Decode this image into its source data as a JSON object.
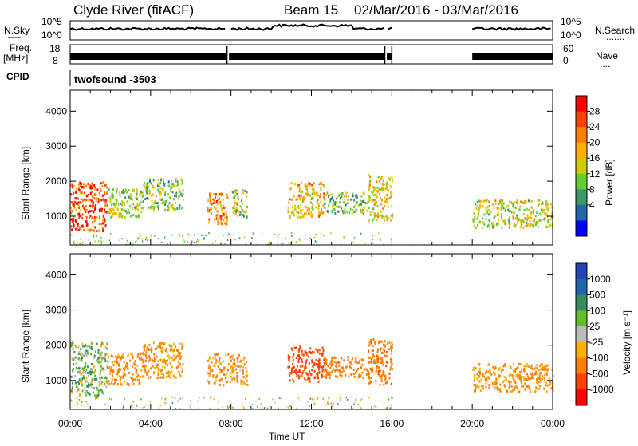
{
  "header": {
    "title": "Clyde River (fitACF)",
    "beam": "Beam 15",
    "date_range": "02/Mar/2016 - 03/Mar/2016"
  },
  "strip_labels": {
    "nsky": "N.Sky",
    "freq_top": "Freq.",
    "freq_unit": "[MHz]",
    "cpid": "CPID",
    "nsearch": "N.Search",
    "nave": "Nave",
    "nsky_top_tick": "10^5",
    "nsky_bottom_tick": "10^0",
    "nsearch_top_tick": "10^5",
    "nsearch_bottom_tick": "10^0",
    "freq_top_tick": "18",
    "freq_bottom_tick": "8",
    "nave_top_tick": "60",
    "nave_bottom_tick": "0",
    "cpid_value": "twofsound -3503"
  },
  "power_colorbar": {
    "label": "Power [dB]",
    "ticks": [
      "28",
      "24",
      "20",
      "16",
      "12",
      "8",
      "4"
    ],
    "colors": [
      "#ff0000",
      "#ff4000",
      "#ff8000",
      "#ffb000",
      "#cccc00",
      "#66cc33",
      "#3a9966",
      "#2266aa",
      "#0000ff"
    ]
  },
  "velocity_colorbar": {
    "label": "Velocity [m s⁻¹]",
    "ticks": [
      "1000",
      "500",
      "100",
      "25",
      "-25",
      "-100",
      "-500",
      "-1000"
    ],
    "colors": [
      "#2244bb",
      "#2266aa",
      "#3a8a60",
      "#66bb33",
      "#bbbbbb",
      "#ffb000",
      "#ff8000",
      "#ff4000",
      "#ff0000"
    ]
  },
  "x_axis": {
    "label": "Time UT",
    "ticks": [
      "00:00",
      "04:00",
      "08:00",
      "12:00",
      "16:00",
      "20:00",
      "00:00"
    ]
  },
  "chart_data": [
    {
      "type": "heatmap",
      "panel": "power",
      "ylabel": "Slant Range [km]",
      "xlabel": "",
      "xlim_hours": [
        0,
        24
      ],
      "ylim_km": [
        180,
        4600
      ],
      "yticks": [
        "1000",
        "2000",
        "3000",
        "4000"
      ],
      "scatter_regions": [
        {
          "t0": 0.0,
          "t1": 1.8,
          "r0": 600,
          "r1": 2000,
          "value_db": 26
        },
        {
          "t0": 1.8,
          "t1": 3.6,
          "r0": 1000,
          "r1": 1800,
          "value_db": 12
        },
        {
          "t0": 3.6,
          "t1": 5.6,
          "r0": 1200,
          "r1": 2100,
          "value_db": 10
        },
        {
          "t0": 6.8,
          "t1": 7.8,
          "r0": 800,
          "r1": 1700,
          "value_db": 22
        },
        {
          "t0": 8.0,
          "t1": 8.8,
          "r0": 1000,
          "r1": 1800,
          "value_db": 12
        },
        {
          "t0": 10.8,
          "t1": 12.6,
          "r0": 1000,
          "r1": 2000,
          "value_db": 18
        },
        {
          "t0": 12.6,
          "t1": 14.8,
          "r0": 1100,
          "r1": 1700,
          "value_db": 10
        },
        {
          "t0": 14.8,
          "t1": 16.0,
          "r0": 900,
          "r1": 2200,
          "value_db": 16
        },
        {
          "t0": 20.0,
          "t1": 24.0,
          "r0": 700,
          "r1": 1500,
          "value_db": 14
        }
      ]
    },
    {
      "type": "heatmap",
      "panel": "velocity",
      "ylabel": "Slant Range [km]",
      "xlabel": "Time UT",
      "xlim_hours": [
        0,
        24
      ],
      "ylim_km": [
        180,
        4600
      ],
      "yticks": [
        "1000",
        "2000",
        "3000",
        "4000"
      ],
      "scatter_regions": [
        {
          "t0": 0.0,
          "t1": 1.8,
          "r0": 600,
          "r1": 2100,
          "value_ms": 60
        },
        {
          "t0": 1.8,
          "t1": 3.6,
          "r0": 900,
          "r1": 1800,
          "value_ms": -200
        },
        {
          "t0": 3.6,
          "t1": 5.6,
          "r0": 1100,
          "r1": 2100,
          "value_ms": -150
        },
        {
          "t0": 6.8,
          "t1": 8.8,
          "r0": 900,
          "r1": 1800,
          "value_ms": -120
        },
        {
          "t0": 10.8,
          "t1": 12.6,
          "r0": 1000,
          "r1": 2000,
          "value_ms": -600
        },
        {
          "t0": 12.6,
          "t1": 14.8,
          "r0": 1100,
          "r1": 1700,
          "value_ms": -300
        },
        {
          "t0": 14.8,
          "t1": 16.0,
          "r0": 900,
          "r1": 2200,
          "value_ms": -400
        },
        {
          "t0": 20.0,
          "t1": 24.0,
          "r0": 700,
          "r1": 1500,
          "value_ms": -150
        }
      ]
    }
  ]
}
